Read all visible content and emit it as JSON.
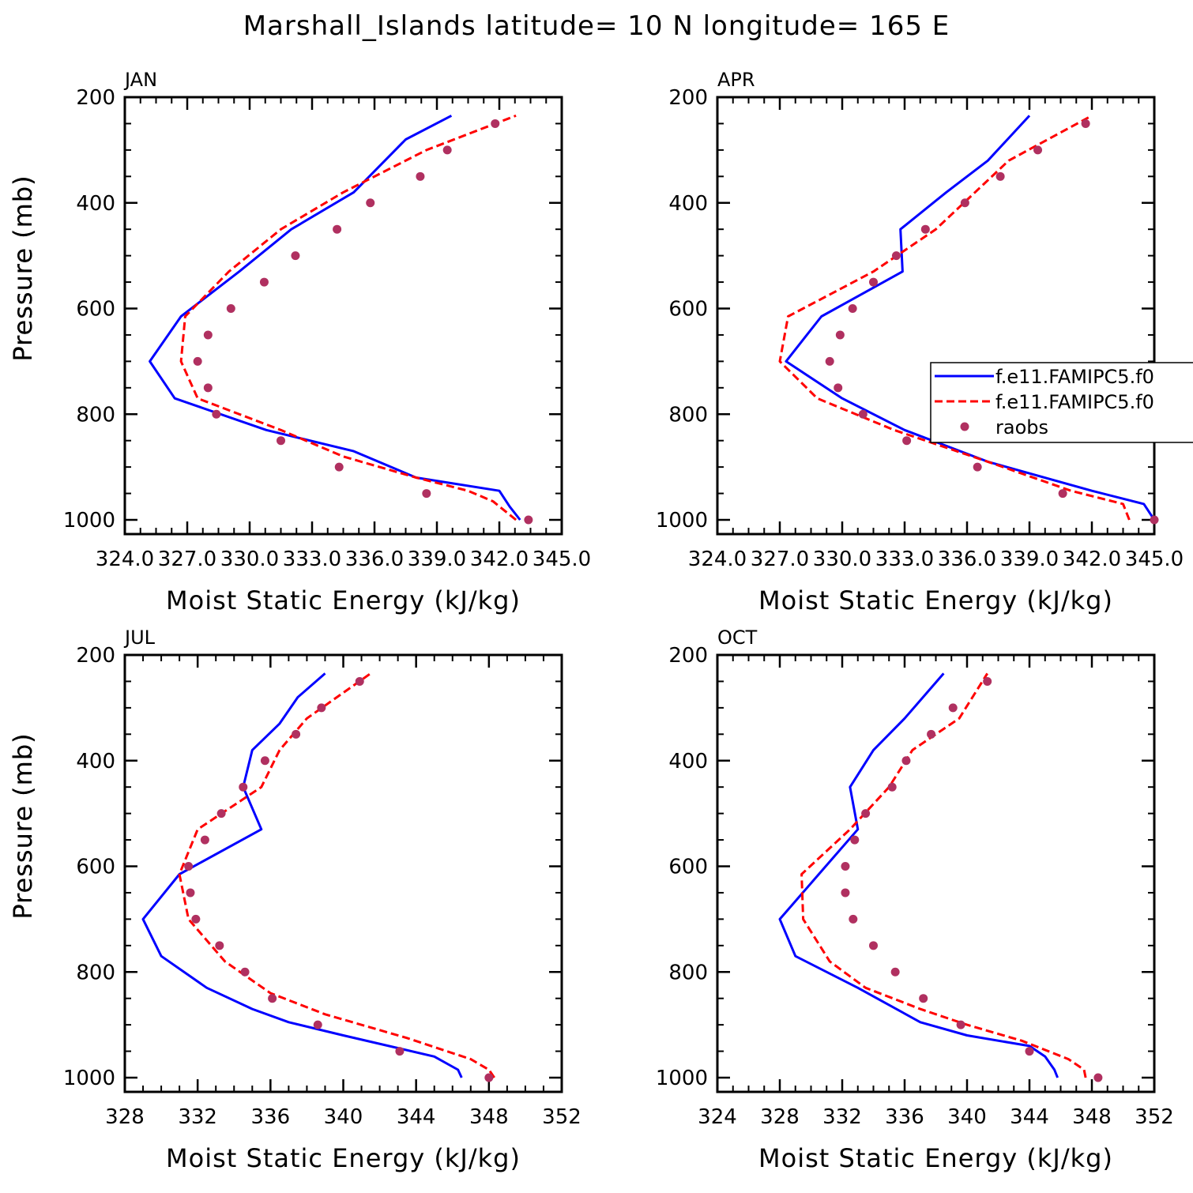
{
  "title": "Marshall_Islands  latitude= 10 N longitude= 165 E",
  "colors": {
    "model1": "#0000ff",
    "model2": "#ff0000",
    "obs": "#b03060",
    "axis": "#000000"
  },
  "legend": {
    "entries": [
      {
        "label": "f.e11.FAMIPC5.f0",
        "series": "model1"
      },
      {
        "label": "f.e11.FAMIPC5.f0",
        "series": "model2"
      },
      {
        "label": "raobs",
        "series": "obs"
      }
    ]
  },
  "chart_data": [
    {
      "type": "line",
      "panel": "JAN",
      "title": "JAN",
      "xlabel": "Moist Static Energy (kJ/kg)",
      "ylabel": "Pressure (mb)",
      "xlim": [
        324,
        345
      ],
      "ylim": [
        1000,
        200
      ],
      "xticks": [
        324,
        327,
        330,
        333,
        336,
        339,
        342,
        345
      ],
      "xtick_labels": [
        "324.0",
        "327.0",
        "330.0",
        "333.0",
        "336.0",
        "339.0",
        "342.0",
        "345.0"
      ],
      "yticks": [
        200,
        400,
        600,
        800,
        1000
      ],
      "ytick_labels": [
        "200",
        "400",
        "600",
        "800",
        "1000"
      ],
      "series": [
        {
          "name": "f.e11.FAMIPC5.f0",
          "key": "model1",
          "style": "solid",
          "x": [
            343.0,
            342.5,
            342.0,
            338.0,
            335.0,
            330.8,
            326.4,
            325.2,
            326.7,
            329.5,
            332.0,
            335.0,
            337.5,
            339.7
          ],
          "y": [
            1000,
            975,
            945,
            920,
            870,
            830,
            770,
            700,
            615,
            530,
            450,
            380,
            280,
            235
          ]
        },
        {
          "name": "f.e11.FAMIPC5.f0",
          "key": "model2",
          "style": "dashed",
          "x": [
            342.8,
            341.7,
            340.5,
            338.0,
            334.5,
            331.5,
            327.5,
            326.7,
            326.9,
            329.0,
            331.5,
            334.5,
            338.5,
            342.8
          ],
          "y": [
            1000,
            965,
            945,
            920,
            880,
            830,
            770,
            700,
            615,
            530,
            450,
            380,
            300,
            235
          ]
        },
        {
          "name": "raobs",
          "key": "obs",
          "style": "points",
          "x": [
            343.4,
            338.5,
            334.3,
            331.5,
            328.4,
            328.0,
            327.5,
            328.0,
            329.1,
            330.7,
            332.2,
            334.2,
            335.8,
            338.2,
            339.5,
            341.8
          ],
          "y": [
            1000,
            950,
            900,
            850,
            800,
            750,
            700,
            650,
            600,
            550,
            500,
            450,
            400,
            350,
            300,
            250
          ]
        }
      ]
    },
    {
      "type": "line",
      "panel": "APR",
      "title": "APR",
      "xlabel": "Moist Static Energy (kJ/kg)",
      "ylabel": "Pressure (mb)",
      "xlim": [
        324,
        345
      ],
      "ylim": [
        1000,
        200
      ],
      "xticks": [
        324,
        327,
        330,
        333,
        336,
        339,
        342,
        345
      ],
      "xtick_labels": [
        "324.0",
        "327.0",
        "330.0",
        "333.0",
        "336.0",
        "339.0",
        "342.0",
        "345.0"
      ],
      "yticks": [
        200,
        400,
        600,
        800,
        1000
      ],
      "ytick_labels": [
        "200",
        "400",
        "600",
        "800",
        "1000"
      ],
      "series": [
        {
          "name": "f.e11.FAMIPC5.f0",
          "key": "model1",
          "style": "solid",
          "x": [
            345.0,
            344.5,
            342.0,
            337.0,
            333.0,
            330.0,
            327.3,
            329.0,
            332.9,
            332.8,
            335.0,
            337.0,
            339.0
          ],
          "y": [
            1000,
            970,
            945,
            890,
            830,
            770,
            700,
            615,
            530,
            450,
            380,
            320,
            235
          ]
        },
        {
          "name": "f.e11.FAMIPC5.f0",
          "key": "model2",
          "style": "dashed",
          "x": [
            343.8,
            343.5,
            341.0,
            337.0,
            332.5,
            328.8,
            327.0,
            327.4,
            331.5,
            334.5,
            338.0,
            342.0
          ],
          "y": [
            1000,
            970,
            945,
            890,
            830,
            770,
            700,
            615,
            530,
            450,
            320,
            235
          ]
        },
        {
          "name": "raobs",
          "key": "obs",
          "style": "points",
          "x": [
            345.0,
            340.6,
            336.5,
            333.1,
            331.0,
            329.8,
            329.4,
            329.9,
            330.5,
            331.5,
            332.6,
            334.0,
            335.9,
            337.6,
            339.4,
            341.7
          ],
          "y": [
            1000,
            950,
            900,
            850,
            800,
            750,
            700,
            650,
            600,
            550,
            500,
            450,
            400,
            350,
            300,
            250
          ]
        }
      ]
    },
    {
      "type": "line",
      "panel": "JUL",
      "title": "JUL",
      "xlabel": "Moist Static Energy (kJ/kg)",
      "ylabel": "Pressure (mb)",
      "xlim": [
        328,
        352
      ],
      "ylim": [
        1000,
        200
      ],
      "xticks": [
        328,
        332,
        336,
        340,
        344,
        348,
        352
      ],
      "xtick_labels": [
        "328",
        "332",
        "336",
        "340",
        "344",
        "348",
        "352"
      ],
      "yticks": [
        200,
        400,
        600,
        800,
        1000
      ],
      "ytick_labels": [
        "200",
        "400",
        "600",
        "800",
        "1000"
      ],
      "series": [
        {
          "name": "f.e11.FAMIPC5.f0",
          "key": "model1",
          "style": "solid",
          "x": [
            346.5,
            346.3,
            345.0,
            340.0,
            337.0,
            335.0,
            332.5,
            330.0,
            329.0,
            331.0,
            335.5,
            334.5,
            335.0,
            336.5,
            337.5,
            339.0
          ],
          "y": [
            1000,
            985,
            960,
            920,
            895,
            870,
            830,
            770,
            700,
            615,
            530,
            450,
            380,
            330,
            280,
            235
          ]
        },
        {
          "name": "f.e11.FAMIPC5.f0",
          "key": "model2",
          "style": "dashed",
          "x": [
            348.3,
            348.0,
            347.0,
            343.5,
            339.0,
            336.0,
            333.5,
            331.5,
            331.0,
            332.0,
            335.5,
            336.5,
            338.0,
            341.5
          ],
          "y": [
            1000,
            985,
            965,
            925,
            880,
            840,
            780,
            700,
            615,
            530,
            450,
            380,
            320,
            235
          ]
        },
        {
          "name": "raobs",
          "key": "obs",
          "style": "points",
          "x": [
            348.0,
            343.1,
            338.6,
            336.1,
            334.6,
            333.2,
            331.9,
            331.6,
            331.5,
            332.4,
            333.3,
            334.5,
            335.7,
            337.4,
            338.8,
            340.9
          ],
          "y": [
            1000,
            950,
            900,
            850,
            800,
            750,
            700,
            650,
            600,
            550,
            500,
            450,
            400,
            350,
            300,
            250
          ]
        }
      ]
    },
    {
      "type": "line",
      "panel": "OCT",
      "title": "OCT",
      "xlabel": "Moist Static Energy (kJ/kg)",
      "ylabel": "Pressure (mb)",
      "xlim": [
        324,
        352
      ],
      "ylim": [
        1000,
        200
      ],
      "xticks": [
        324,
        328,
        332,
        336,
        340,
        344,
        348,
        352
      ],
      "xtick_labels": [
        "324",
        "328",
        "332",
        "336",
        "340",
        "344",
        "348",
        "352"
      ],
      "yticks": [
        200,
        400,
        600,
        800,
        1000
      ],
      "ytick_labels": [
        "200",
        "400",
        "600",
        "800",
        "1000"
      ],
      "series": [
        {
          "name": "f.e11.FAMIPC5.f0",
          "key": "model1",
          "style": "solid",
          "x": [
            345.8,
            345.6,
            345.0,
            344.0,
            340.0,
            337.0,
            333.0,
            329.0,
            328.0,
            330.5,
            333.0,
            332.5,
            334.0,
            336.0,
            338.5
          ],
          "y": [
            1000,
            985,
            960,
            940,
            920,
            895,
            830,
            770,
            700,
            615,
            530,
            450,
            380,
            320,
            235
          ]
        },
        {
          "name": "f.e11.FAMIPC5.f0",
          "key": "model2",
          "style": "dashed",
          "x": [
            347.6,
            347.5,
            346.5,
            343.5,
            340.0,
            337.0,
            333.5,
            331.2,
            329.5,
            329.4,
            332.5,
            335.0,
            336.5,
            339.5,
            341.3
          ],
          "y": [
            1000,
            985,
            965,
            930,
            900,
            870,
            830,
            780,
            700,
            615,
            530,
            450,
            380,
            320,
            235
          ]
        },
        {
          "name": "raobs",
          "key": "obs",
          "style": "points",
          "x": [
            348.4,
            344.0,
            339.6,
            337.2,
            335.4,
            334.0,
            332.7,
            332.2,
            332.2,
            332.8,
            333.5,
            335.2,
            336.1,
            337.7,
            339.1,
            341.3
          ],
          "y": [
            1000,
            950,
            900,
            850,
            800,
            750,
            700,
            650,
            600,
            550,
            500,
            450,
            400,
            350,
            300,
            250
          ]
        }
      ]
    }
  ]
}
